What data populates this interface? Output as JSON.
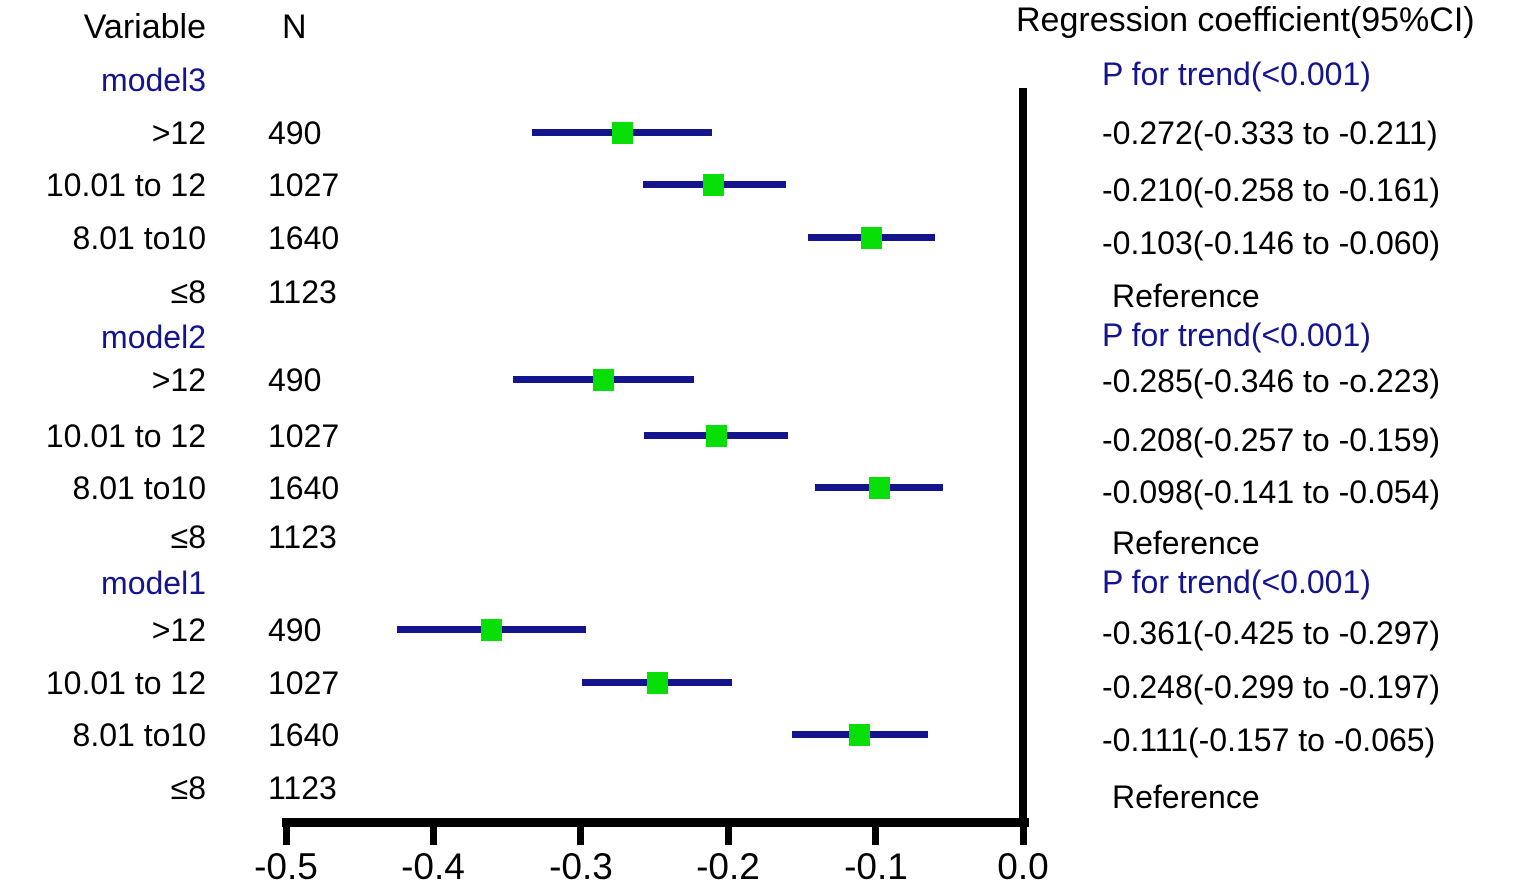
{
  "columns": {
    "variable": "Variable",
    "n": "N",
    "coef": "Regression coefficient(95%CI)"
  },
  "colors": {
    "line": "#14148c",
    "marker": "#07df07",
    "blue_text": "#14148f",
    "axis": "#000000",
    "background": "#ffffff",
    "text": "#000000"
  },
  "chart_data": {
    "type": "scatter",
    "subtype": "forest-plot",
    "title": "",
    "xlabel": "",
    "x_range": [
      -0.5,
      0.0
    ],
    "x_ticks": [
      -0.5,
      -0.4,
      -0.3,
      -0.2,
      -0.1,
      0.0
    ],
    "x_tick_labels": [
      "-0.5",
      "-0.4",
      "-0.3",
      "-0.2",
      "-0.1",
      "0.0"
    ],
    "grid": false,
    "legend": false,
    "zero_line": 0.0,
    "groups": [
      {
        "label": "model3",
        "p_for_trend": "P for trend(<0.001)",
        "rows": [
          {
            "variable": ">12",
            "n": "490",
            "estimate": -0.272,
            "ci_low": -0.333,
            "ci_high": -0.211,
            "text": "-0.272(-0.333 to -0.211)"
          },
          {
            "variable": "10.01 to 12",
            "n": "1027",
            "estimate": -0.21,
            "ci_low": -0.258,
            "ci_high": -0.161,
            "text": "-0.210(-0.258 to -0.161)"
          },
          {
            "variable": "8.01 to10",
            "n": "1640",
            "estimate": -0.103,
            "ci_low": -0.146,
            "ci_high": -0.06,
            "text": "-0.103(-0.146 to -0.060)"
          },
          {
            "variable": "≤8",
            "n": "1123",
            "estimate": null,
            "ci_low": null,
            "ci_high": null,
            "text": "Reference"
          }
        ]
      },
      {
        "label": "model2",
        "p_for_trend": "P for trend(<0.001)",
        "rows": [
          {
            "variable": ">12",
            "n": "490",
            "estimate": -0.285,
            "ci_low": -0.346,
            "ci_high": -0.223,
            "text": "-0.285(-0.346 to -o.223)"
          },
          {
            "variable": "10.01 to 12",
            "n": "1027",
            "estimate": -0.208,
            "ci_low": -0.257,
            "ci_high": -0.159,
            "text": "-0.208(-0.257 to -0.159)"
          },
          {
            "variable": "8.01 to10",
            "n": "1640",
            "estimate": -0.098,
            "ci_low": -0.141,
            "ci_high": -0.054,
            "text": "-0.098(-0.141 to -0.054)"
          },
          {
            "variable": "≤8",
            "n": "1123",
            "estimate": null,
            "ci_low": null,
            "ci_high": null,
            "text": "Reference"
          }
        ]
      },
      {
        "label": "model1",
        "p_for_trend": "P for trend(<0.001)",
        "rows": [
          {
            "variable": ">12",
            "n": "490",
            "estimate": -0.361,
            "ci_low": -0.425,
            "ci_high": -0.297,
            "text": "-0.361(-0.425 to -0.297)"
          },
          {
            "variable": "10.01 to 12",
            "n": "1027",
            "estimate": -0.248,
            "ci_low": -0.299,
            "ci_high": -0.197,
            "text": "-0.248(-0.299 to -0.197)"
          },
          {
            "variable": "8.01 to10",
            "n": "1640",
            "estimate": -0.111,
            "ci_low": -0.157,
            "ci_high": -0.065,
            "text": "-0.111(-0.157 to -0.065)"
          },
          {
            "variable": "≤8",
            "n": "1123",
            "estimate": null,
            "ci_low": null,
            "ci_high": null,
            "text": "Reference"
          }
        ]
      }
    ]
  }
}
